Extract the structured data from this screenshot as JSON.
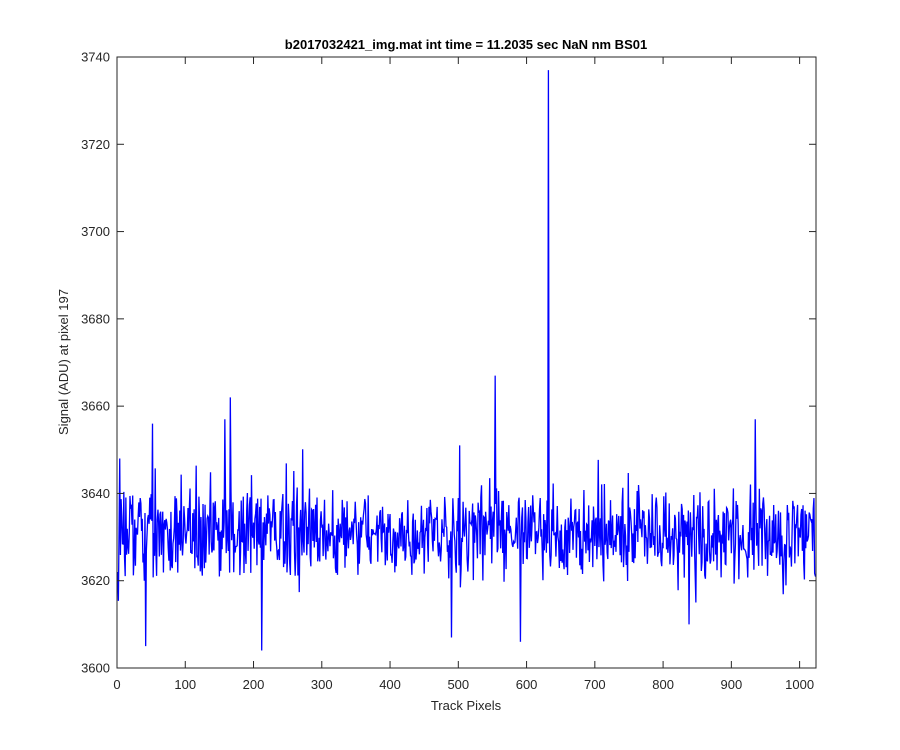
{
  "chart_data": {
    "type": "line",
    "title": "b2017032421_img.mat int time = 11.2035 sec  NaN nm BS01",
    "xlabel": "Track Pixels",
    "ylabel": "Signal (ADU) at pixel 197",
    "xlim": [
      0,
      1024
    ],
    "ylim": [
      3600,
      3740
    ],
    "xticks": [
      0,
      100,
      200,
      300,
      400,
      500,
      600,
      700,
      800,
      900,
      1000
    ],
    "yticks": [
      3600,
      3620,
      3640,
      3660,
      3680,
      3700,
      3720,
      3740
    ],
    "grid": false,
    "legend": "none",
    "line_color": "#0000ff",
    "series": [
      {
        "noise_mean": 3631,
        "noise_band": [
          3621,
          3645
        ],
        "x_values": "1 to 1024 (one sample per track pixel)",
        "points": [
          {
            "x": 1,
            "y": 3622
          },
          {
            "x": 4,
            "y": 3648
          },
          {
            "x": 42,
            "y": 3605
          },
          {
            "x": 52,
            "y": 3656
          },
          {
            "x": 158,
            "y": 3657
          },
          {
            "x": 166,
            "y": 3662
          },
          {
            "x": 212,
            "y": 3604
          },
          {
            "x": 490,
            "y": 3607
          },
          {
            "x": 554,
            "y": 3667
          },
          {
            "x": 591,
            "y": 3606
          },
          {
            "x": 632,
            "y": 3737
          },
          {
            "x": 838,
            "y": 3610
          },
          {
            "x": 935,
            "y": 3657
          },
          {
            "x": 1024,
            "y": 3621
          }
        ]
      }
    ]
  }
}
